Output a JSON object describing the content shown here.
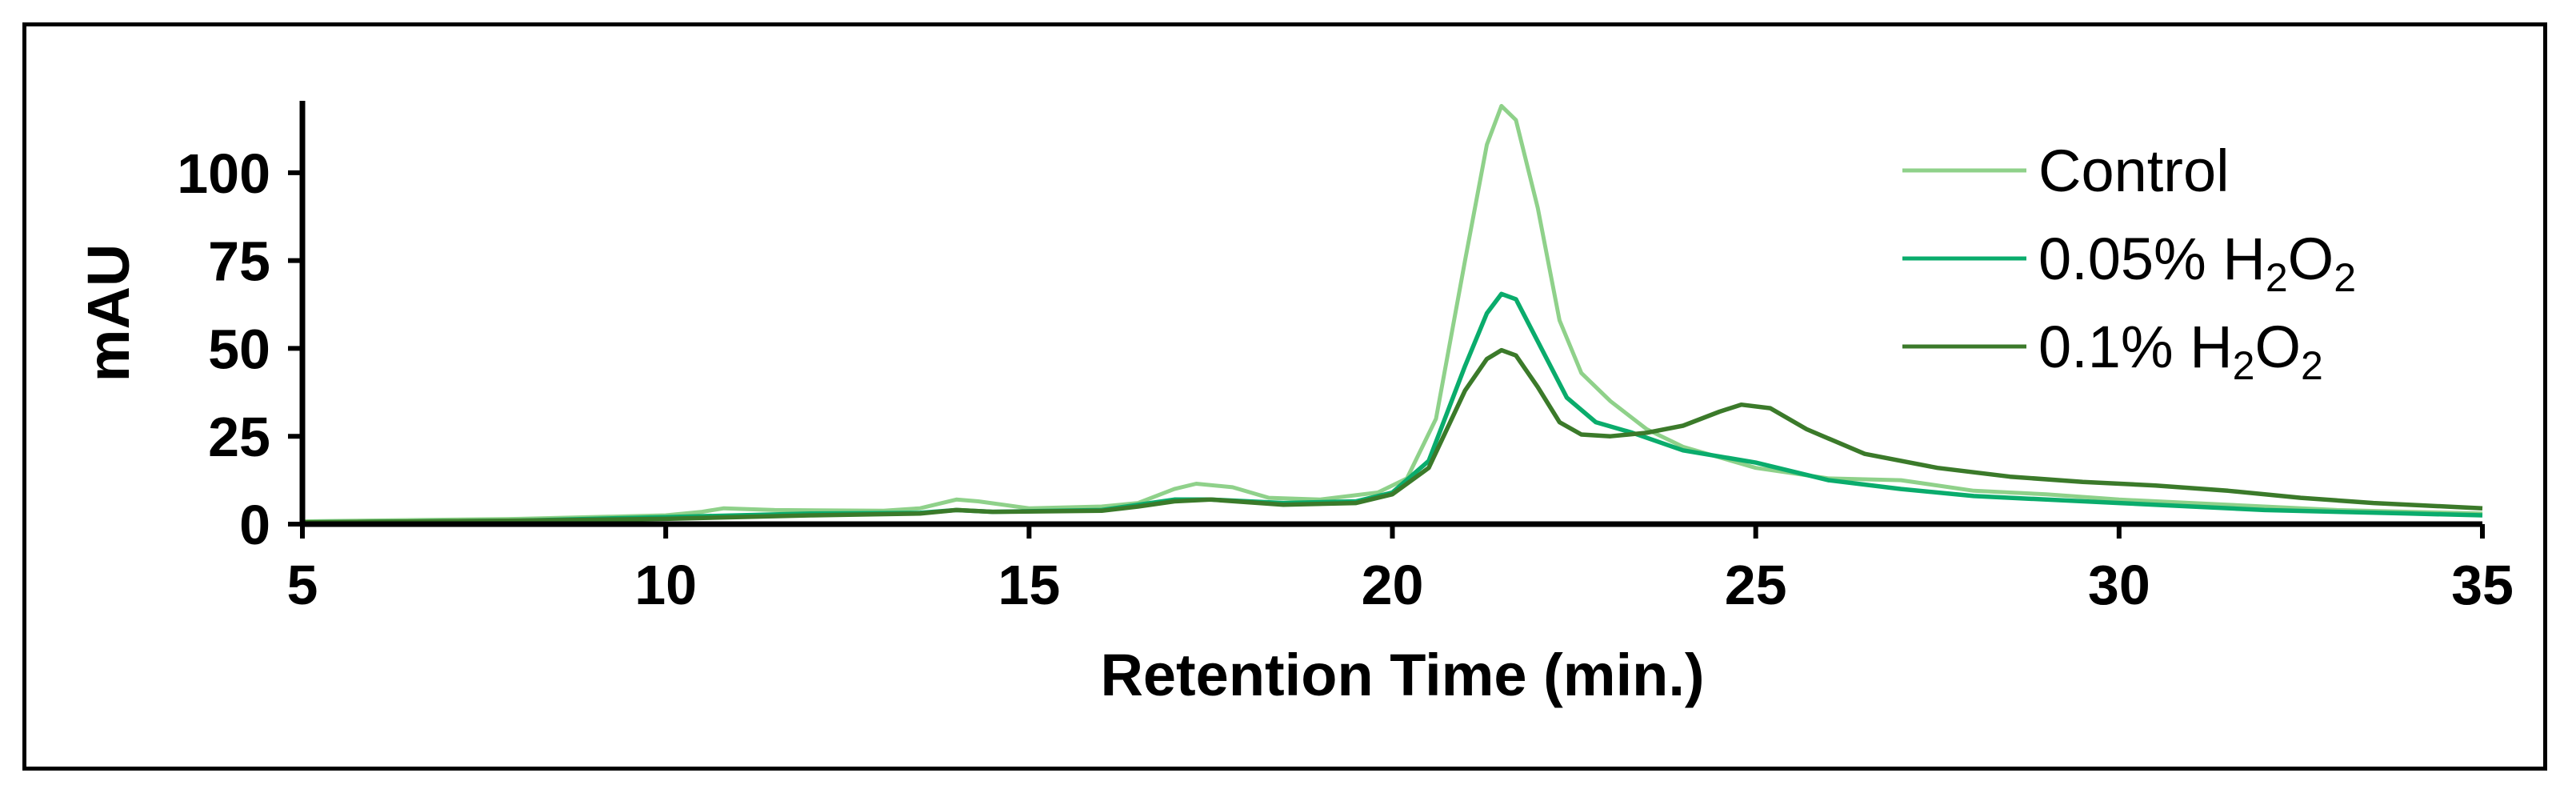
{
  "chart_data": {
    "type": "line",
    "xlabel": "Retention Time (min.)",
    "ylabel": "mAU",
    "xlim": [
      5,
      35
    ],
    "ylim": [
      0,
      120
    ],
    "xticks": [
      5,
      10,
      15,
      20,
      25,
      30,
      35
    ],
    "yticks": [
      0,
      25,
      50,
      75,
      100
    ],
    "legend_position": "top-right",
    "grid": false,
    "series": [
      {
        "name": "Control",
        "legend_label": {
          "prefix": "Control",
          "formula": false
        },
        "color": "#8fd18a",
        "x": [
          5,
          8,
          10,
          10.5,
          10.8,
          11.5,
          13,
          13.5,
          14,
          14.3,
          15,
          16,
          16.5,
          17,
          17.3,
          17.8,
          18.3,
          19,
          19.8,
          20.2,
          20.6,
          21.0,
          21.3,
          21.5,
          21.7,
          22.0,
          22.3,
          22.6,
          23,
          23.5,
          24,
          25,
          26,
          27,
          28,
          29,
          30,
          31,
          32,
          33,
          34,
          35
        ],
        "y": [
          0.8,
          1.5,
          2.5,
          3.5,
          4.5,
          4.0,
          3.8,
          4.5,
          7.0,
          6.5,
          4.5,
          5.0,
          6.0,
          10.0,
          11.5,
          10.5,
          7.5,
          7.0,
          9.0,
          13.0,
          30.0,
          75.0,
          108.0,
          119.0,
          115.0,
          90.0,
          58.0,
          43.0,
          35.0,
          27.0,
          22.0,
          16.0,
          13.0,
          12.5,
          9.5,
          8.5,
          7.0,
          6.0,
          5.0,
          4.0,
          3.5,
          3.0
        ]
      },
      {
        "name": "0.05% H2O2",
        "legend_label": {
          "prefix": "0.05% H",
          "sub1": "2",
          "mid": "O",
          "sub2": "2",
          "formula": true
        },
        "color": "#0aac6c",
        "x": [
          5,
          8,
          10,
          12,
          13.5,
          14,
          14.5,
          16,
          16.5,
          17,
          17.5,
          18.5,
          19.5,
          20,
          20.5,
          21.0,
          21.3,
          21.5,
          21.7,
          22.0,
          22.4,
          22.8,
          23.3,
          24,
          25,
          26,
          27,
          28,
          29,
          30,
          31,
          32,
          33,
          34,
          35
        ],
        "y": [
          0.5,
          1.0,
          2.0,
          3.0,
          3.2,
          4.0,
          3.5,
          4.0,
          5.5,
          7.0,
          7.0,
          6.0,
          6.5,
          9.0,
          18.0,
          45.0,
          60.0,
          65.5,
          64.0,
          52.0,
          36.0,
          29.0,
          26.0,
          21.0,
          17.5,
          12.5,
          10.0,
          8.0,
          7.0,
          6.0,
          5.0,
          4.0,
          3.5,
          3.0,
          2.5
        ]
      },
      {
        "name": "0.1% H2O2",
        "legend_label": {
          "prefix": "0.1% H",
          "sub1": "2",
          "mid": "O",
          "sub2": "2",
          "formula": true
        },
        "color": "#3b7a2a",
        "x": [
          5,
          8,
          10,
          12,
          13.5,
          14,
          14.5,
          16,
          16.5,
          17,
          17.5,
          18.5,
          19.5,
          20,
          20.5,
          21.0,
          21.3,
          21.5,
          21.7,
          22.0,
          22.3,
          22.6,
          23,
          23.5,
          24,
          24.5,
          24.8,
          25.2,
          25.7,
          26.5,
          27.5,
          28.5,
          29.5,
          30.5,
          31.5,
          32.5,
          33.5,
          34.5,
          35
        ],
        "y": [
          0.5,
          1.0,
          1.5,
          2.5,
          3.0,
          4.0,
          3.5,
          3.8,
          5.0,
          6.5,
          7.0,
          5.5,
          6.0,
          8.5,
          16.0,
          38.0,
          47.0,
          49.5,
          48.0,
          39.0,
          29.0,
          25.5,
          25.0,
          26.0,
          28.0,
          32.0,
          34.0,
          33.0,
          27.0,
          20.0,
          16.0,
          13.5,
          12.0,
          11.0,
          9.5,
          7.5,
          6.0,
          5.0,
          4.5
        ]
      }
    ]
  }
}
